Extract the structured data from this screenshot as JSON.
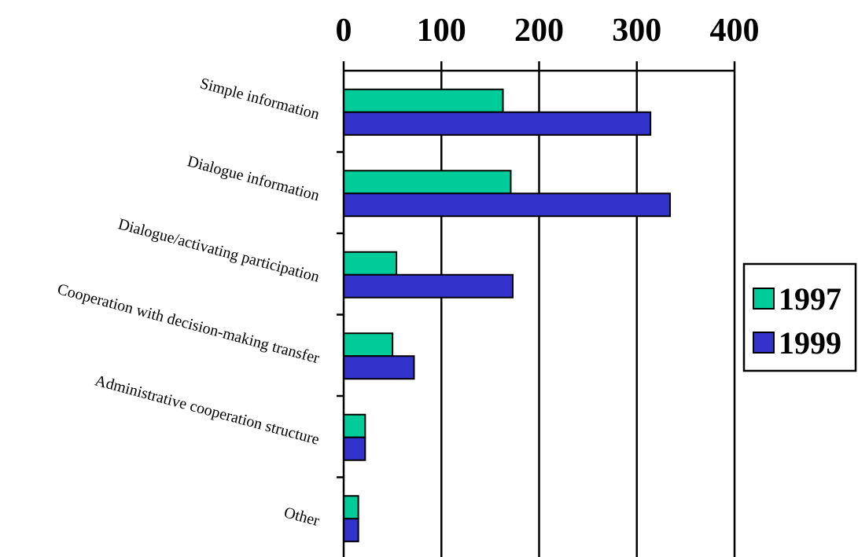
{
  "chart_data": {
    "type": "bar",
    "orientation": "horizontal",
    "categories": [
      "Simple information",
      "Dialogue information",
      "Dialogue/activating participation",
      "Cooperation with decision-making transfer",
      "Administrative cooperation structure",
      "Other"
    ],
    "series": [
      {
        "name": "1997",
        "color": "#00cc99",
        "values": [
          163,
          171,
          54,
          50,
          22,
          15
        ]
      },
      {
        "name": "1999",
        "color": "#3333cc",
        "values": [
          314,
          334,
          173,
          72,
          22,
          15
        ]
      }
    ],
    "xlim": [
      0,
      400
    ],
    "xticks": [
      "0",
      "100",
      "200",
      "300",
      "400"
    ],
    "tick_position": "top",
    "grid": true,
    "legend_position": "right",
    "title": "",
    "xlabel": "",
    "ylabel": ""
  }
}
